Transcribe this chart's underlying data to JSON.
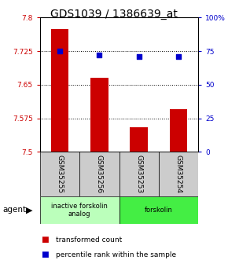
{
  "title": "GDS1039 / 1386639_at",
  "samples": [
    "GSM35255",
    "GSM35256",
    "GSM35253",
    "GSM35254"
  ],
  "bar_values": [
    7.775,
    7.665,
    7.555,
    7.595
  ],
  "percentile_values": [
    75,
    72,
    71,
    71
  ],
  "ylim_left": [
    7.5,
    7.8
  ],
  "ylim_right": [
    0,
    100
  ],
  "yticks_left": [
    7.5,
    7.575,
    7.65,
    7.725,
    7.8
  ],
  "ytick_labels_left": [
    "7.5",
    "7.575",
    "7.65",
    "7.725",
    "7.8"
  ],
  "yticks_right": [
    0,
    25,
    50,
    75,
    100
  ],
  "ytick_labels_right": [
    "0",
    "25",
    "50",
    "75",
    "100%"
  ],
  "bar_color": "#cc0000",
  "dot_color": "#0000cc",
  "left_tick_color": "#cc0000",
  "right_tick_color": "#0000cc",
  "title_fontsize": 10,
  "groups": [
    {
      "label": "inactive forskolin\nanalog",
      "color": "#bbffbb",
      "start": 0,
      "end": 2
    },
    {
      "label": "forskolin",
      "color": "#44ee44",
      "start": 2,
      "end": 4
    }
  ],
  "agent_label": "agent",
  "legend_items": [
    {
      "color": "#cc0000",
      "label": "transformed count"
    },
    {
      "color": "#0000cc",
      "label": "percentile rank within the sample"
    }
  ],
  "gridline_color": "#000000",
  "bar_width": 0.45
}
